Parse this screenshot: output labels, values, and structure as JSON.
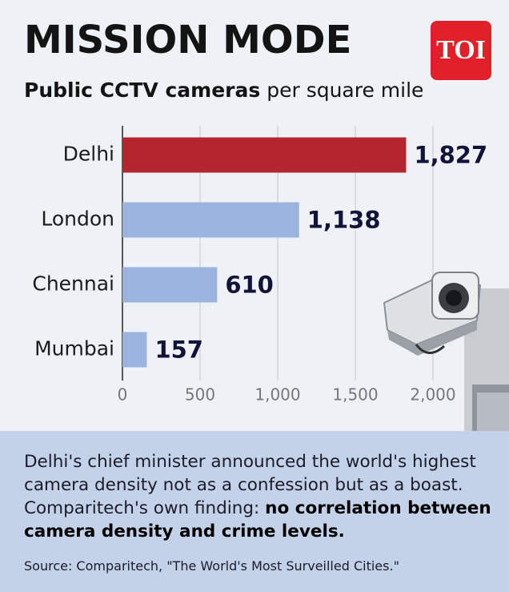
{
  "chart_data": {
    "type": "bar",
    "orientation": "horizontal",
    "title": "MISSION MODE",
    "subtitle_bold": "Public CCTV cameras",
    "subtitle": "per square mile",
    "categories": [
      "Delhi",
      "London",
      "Chennai",
      "Mumbai"
    ],
    "values": [
      1827,
      1138,
      610,
      157
    ],
    "value_labels": [
      "1,827",
      "1,138",
      "610",
      "157"
    ],
    "colors": [
      "#b3262e",
      "#9bb4dd",
      "#9bb4dd",
      "#9bb4dd"
    ],
    "xlim": [
      0,
      2000
    ],
    "xticks": [
      0,
      500,
      {
        "value": 1000,
        "label": "1,000"
      },
      {
        "value": 1500,
        "label": "1,500"
      },
      {
        "value": 2000,
        "label": "2,000"
      }
    ],
    "grid": true
  },
  "logo": "TOI",
  "note": {
    "text": "Delhi's chief minister announced the world's highest camera density not as a confession but as a boast. Comparitech's own finding:",
    "bold": "no correlation between camera density and crime levels."
  },
  "source": "Source: Comparitech, \"The World's Most Surveilled Cities.\""
}
